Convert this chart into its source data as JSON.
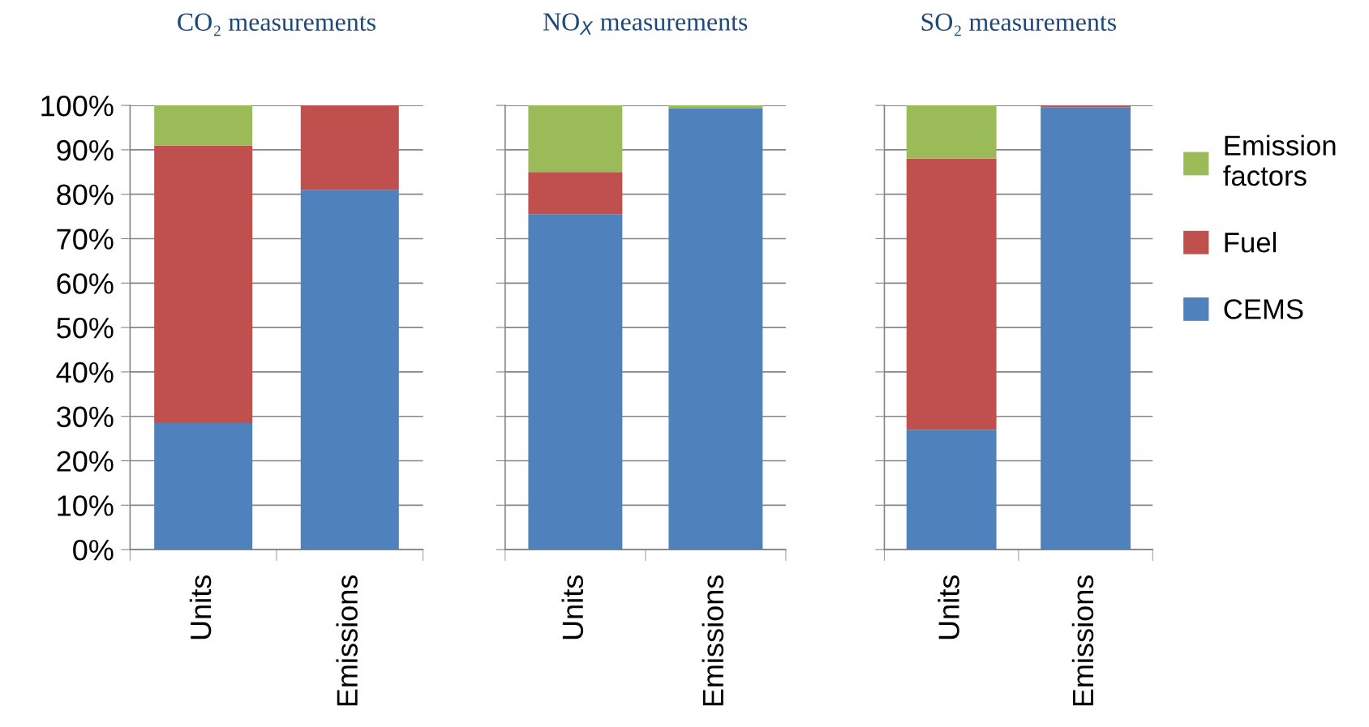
{
  "chart_data": [
    {
      "type": "bar",
      "stacked": true,
      "title": "CO₂ measurements",
      "categories": [
        "Units",
        "Emissions"
      ],
      "ylim": [
        0,
        100
      ],
      "yticks": [
        {
          "value": 0,
          "label": "0%"
        },
        {
          "value": 10,
          "label": "10%"
        },
        {
          "value": 20,
          "label": "20%"
        },
        {
          "value": 30,
          "label": "30%"
        },
        {
          "value": 40,
          "label": "40%"
        },
        {
          "value": 50,
          "label": "50%"
        },
        {
          "value": 60,
          "label": "60%"
        },
        {
          "value": 70,
          "label": "70%"
        },
        {
          "value": 80,
          "label": "80%"
        },
        {
          "value": 90,
          "label": "90%"
        },
        {
          "value": 100,
          "label": "100%"
        }
      ],
      "grid": "y",
      "legend": false,
      "series": [
        {
          "color": "#4f81bd",
          "values": [
            28.5,
            81
          ]
        },
        {
          "color": "#c0504d",
          "values": [
            62.5,
            19
          ]
        },
        {
          "color": "#9bbb59",
          "values": [
            9,
            null
          ]
        }
      ]
    },
    {
      "type": "bar",
      "stacked": true,
      "title": "NO$_{X}$ measurements",
      "categories": [
        "Units",
        "Emissions"
      ],
      "ylim": [
        0,
        100
      ],
      "yticks": [
        {
          "value": 0,
          "label": null
        },
        {
          "value": 10,
          "label": null
        },
        {
          "value": 20,
          "label": null
        },
        {
          "value": 30,
          "label": null
        },
        {
          "value": 40,
          "label": null
        },
        {
          "value": 50,
          "label": null
        },
        {
          "value": 60,
          "label": null
        },
        {
          "value": 70,
          "label": null
        },
        {
          "value": 80,
          "label": null
        },
        {
          "value": 90,
          "label": null
        },
        {
          "value": 100,
          "label": null
        }
      ],
      "tick_labels": "x",
      "grid": "y",
      "legend": false,
      "series": [
        {
          "color": "#4f81bd",
          "values": [
            75.5,
            99.3
          ]
        },
        {
          "color": "#c0504d",
          "values": [
            9.5,
            null
          ]
        },
        {
          "color": "#9bbb59",
          "values": [
            15,
            0.7
          ]
        }
      ]
    },
    {
      "type": "bar",
      "stacked": true,
      "title": "SO₂ measurements",
      "categories": [
        "Units",
        "Emissions"
      ],
      "ylim": [
        0,
        100
      ],
      "yticks": [
        {
          "value": 0,
          "label": null
        },
        {
          "value": 10,
          "label": null
        },
        {
          "value": 20,
          "label": null
        },
        {
          "value": 30,
          "label": null
        },
        {
          "value": 40,
          "label": null
        },
        {
          "value": 50,
          "label": null
        },
        {
          "value": 60,
          "label": null
        },
        {
          "value": 70,
          "label": null
        },
        {
          "value": 80,
          "label": null
        },
        {
          "value": 90,
          "label": null
        },
        {
          "value": 100,
          "label": null
        }
      ],
      "tick_labels": "x",
      "grid": "y",
      "legend": "right",
      "series": [
        {
          "name": "CEMS",
          "color": "#4f81bd",
          "values": [
            27,
            99.6
          ]
        },
        {
          "name": "Fuel",
          "color": "#c0504d",
          "values": [
            61,
            0.4
          ]
        },
        {
          "name": "Emission factors",
          "color": "#9bbb59",
          "values": [
            12,
            null
          ]
        }
      ]
    }
  ]
}
